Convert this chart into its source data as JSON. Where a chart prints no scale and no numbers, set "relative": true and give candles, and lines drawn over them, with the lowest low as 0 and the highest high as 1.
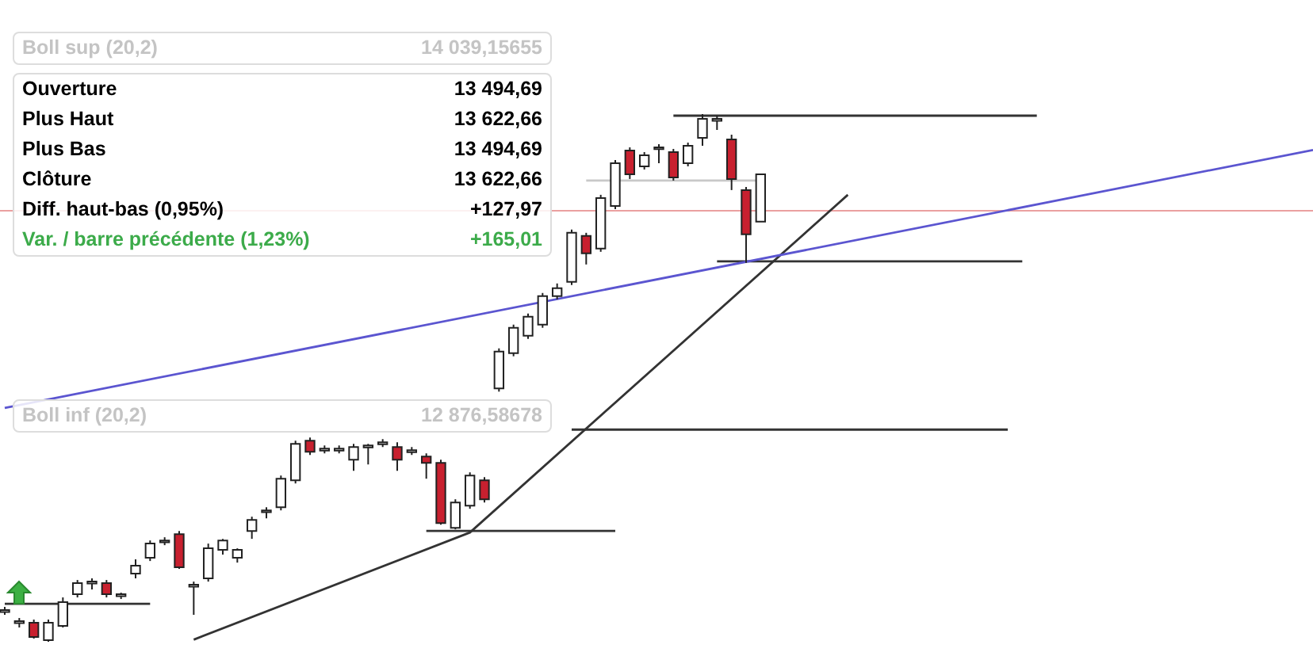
{
  "chart_data": {
    "type": "candlestick",
    "relative": true,
    "legend": false,
    "annotations": [
      "Boll sup (20,2)",
      "14 039,15655",
      "Ouverture",
      "13 494,69",
      "Plus Haut",
      "13 622,66",
      "Plus Bas",
      "13 494,69",
      "Clôture",
      "13 622,66",
      "Diff. haut-bas (0,95%)",
      "+127,97",
      "Var. / barre précédente (1,23%)",
      "+165,01",
      "Boll inf (20,2)",
      "12 876,58678"
    ],
    "categories": [
      null,
      null,
      null,
      null,
      null,
      null,
      null,
      null,
      null,
      null,
      null,
      null,
      null,
      null,
      null,
      null,
      null,
      null,
      null,
      null,
      null,
      null,
      null,
      null,
      null,
      null,
      null,
      null,
      null,
      null,
      null,
      null,
      null,
      null,
      null,
      null,
      null,
      null,
      null,
      null,
      null,
      null,
      null,
      null,
      null,
      null,
      null,
      null,
      null,
      null,
      null,
      null,
      null,
      null,
      null,
      null,
      null,
      null,
      null,
      null,
      null,
      null,
      null,
      null,
      null,
      null,
      null,
      null,
      null,
      null,
      null,
      null,
      null,
      null,
      null,
      null,
      null,
      null,
      null,
      null,
      null,
      null,
      null,
      null,
      null,
      null,
      null,
      null,
      null,
      null,
      null
    ],
    "ohlc": [
      [
        0.06,
        0.066,
        0.051,
        0.06
      ],
      [
        0.039,
        0.045,
        0.027,
        0.039
      ],
      [
        0.036,
        0.042,
        0.006,
        0.009
      ],
      [
        0.003,
        0.042,
        0,
        0.036
      ],
      [
        0.03,
        0.084,
        0.027,
        0.075
      ],
      [
        0.09,
        0.117,
        0.084,
        0.111
      ],
      [
        0.114,
        0.12,
        0.099,
        0.114
      ],
      [
        0.111,
        0.117,
        0.084,
        0.09
      ],
      [
        0.09,
        0.093,
        0.081,
        0.09
      ],
      [
        0.129,
        0.156,
        0.12,
        0.144
      ],
      [
        0.159,
        0.192,
        0.153,
        0.186
      ],
      [
        0.192,
        0.198,
        0.183,
        0.192
      ],
      [
        0.204,
        0.21,
        0.138,
        0.141
      ],
      [
        0.108,
        0.114,
        0.051,
        0.108
      ],
      [
        0.12,
        0.186,
        0.114,
        0.177
      ],
      [
        0.174,
        0.195,
        0.165,
        0.192
      ],
      [
        0.159,
        0.177,
        0.15,
        0.174
      ],
      [
        0.21,
        0.237,
        0.195,
        0.231
      ],
      [
        0.249,
        0.255,
        0.234,
        0.249
      ],
      [
        0.255,
        0.315,
        0.249,
        0.309
      ],
      [
        0.306,
        0.381,
        0.3,
        0.375
      ],
      [
        0.381,
        0.387,
        0.354,
        0.36
      ],
      [
        0.366,
        0.372,
        0.357,
        0.366
      ],
      [
        0.366,
        0.372,
        0.357,
        0.366
      ],
      [
        0.345,
        0.375,
        0.324,
        0.369
      ],
      [
        0.372,
        0.375,
        0.336,
        0.372
      ],
      [
        0.378,
        0.384,
        0.369,
        0.378
      ],
      [
        0.369,
        0.378,
        0.324,
        0.345
      ],
      [
        0.363,
        0.369,
        0.354,
        0.363
      ],
      [
        0.351,
        0.357,
        0.309,
        0.339
      ],
      [
        0.339,
        0.345,
        0.222,
        0.225
      ],
      [
        0.216,
        0.27,
        0.213,
        0.264
      ],
      [
        0.258,
        0.321,
        0.252,
        0.315
      ],
      [
        0.306,
        0.312,
        0.264,
        0.27
      ],
      [
        0.48,
        0.556,
        0.474,
        0.55
      ],
      [
        0.547,
        0.601,
        0.541,
        0.595
      ],
      [
        0.58,
        0.622,
        0.574,
        0.616
      ],
      [
        0.601,
        0.661,
        0.595,
        0.655
      ],
      [
        0.655,
        0.679,
        0.649,
        0.67
      ],
      [
        0.682,
        0.781,
        0.676,
        0.775
      ],
      [
        0.769,
        0.775,
        0.715,
        0.736
      ],
      [
        0.745,
        0.847,
        0.739,
        0.841
      ],
      [
        0.826,
        0.913,
        0.82,
        0.907
      ],
      [
        0.931,
        0.937,
        0.877,
        0.886
      ],
      [
        0.901,
        0.928,
        0.895,
        0.922
      ],
      [
        0.937,
        0.943,
        0.907,
        0.937
      ],
      [
        0.928,
        0.934,
        0.874,
        0.88
      ],
      [
        0.907,
        0.946,
        0.901,
        0.94
      ],
      [
        0.955,
        1,
        0.94,
        0.991
      ],
      [
        0.991,
        0.997,
        0.97,
        0.991
      ],
      [
        0.952,
        0.961,
        0.856,
        0.877
      ],
      [
        0.856,
        0.862,
        0.718,
        0.772
      ],
      [
        0.796,
        0.886,
        0.796,
        0.886
      ],
      null,
      null,
      null,
      null,
      null,
      null,
      null,
      null,
      null,
      null,
      null,
      null,
      null,
      null,
      null,
      null,
      null,
      null,
      null,
      null,
      null,
      null,
      null,
      null,
      null,
      null,
      null,
      null,
      null,
      null,
      null,
      null,
      null,
      null,
      null,
      null,
      null,
      null
    ],
    "ref_lines": [
      {
        "axis": "y",
        "value": 0.817,
        "color": "#eaa0a0"
      }
    ],
    "series": [
      {
        "type": "line",
        "color": "#5b55d0",
        "values": [
          0.443,
          null,
          null,
          null,
          null,
          null,
          null,
          null,
          null,
          null,
          null,
          null,
          null,
          null,
          null,
          null,
          null,
          null,
          null,
          null,
          null,
          null,
          null,
          null,
          null,
          null,
          null,
          null,
          null,
          null,
          null,
          null,
          null,
          null,
          null,
          null,
          null,
          null,
          null,
          null,
          null,
          null,
          null,
          null,
          null,
          null,
          null,
          null,
          null,
          null,
          null,
          null,
          null,
          null,
          null,
          null,
          null,
          null,
          null,
          null,
          null,
          null,
          null,
          null,
          null,
          null,
          null,
          null,
          null,
          null,
          null,
          null,
          null,
          null,
          null,
          null,
          null,
          null,
          null,
          null,
          null,
          null,
          null,
          null,
          null,
          null,
          null,
          null,
          null,
          null,
          0.932
        ]
      },
      {
        "type": "line",
        "color": "#333333",
        "values": [
          null,
          null,
          null,
          null,
          null,
          null,
          null,
          null,
          null,
          null,
          null,
          null,
          null,
          0.004,
          null,
          null,
          null,
          null,
          null,
          null,
          null,
          null,
          null,
          null,
          null,
          null,
          null,
          null,
          null,
          null,
          null,
          null,
          0.207,
          null,
          null,
          null,
          null,
          null,
          null,
          null,
          null,
          null,
          null,
          null,
          null,
          null,
          null,
          null,
          null,
          null,
          null,
          null,
          null,
          null,
          null,
          null,
          null,
          null,
          0.847,
          null,
          null,
          null,
          null,
          null,
          null,
          null,
          null,
          null,
          null,
          null,
          null,
          null,
          null,
          null,
          null,
          null,
          null,
          null,
          null,
          null,
          null,
          null,
          null,
          null,
          null,
          null,
          null,
          null,
          null,
          null,
          null
        ]
      },
      {
        "type": "line",
        "color": "#333333",
        "values": [
          0.072,
          null,
          null,
          null,
          null,
          null,
          null,
          null,
          null,
          null,
          0.072,
          null,
          null,
          null,
          null,
          null,
          null,
          null,
          null,
          null,
          null,
          null,
          null,
          null,
          null,
          null,
          null,
          null,
          null,
          null,
          null,
          null,
          null,
          null,
          null,
          null,
          null,
          null,
          null,
          null,
          null,
          null,
          null,
          null,
          null,
          null,
          null,
          null,
          null,
          null,
          null,
          null,
          null,
          null,
          null,
          null,
          null,
          null,
          null,
          null,
          null,
          null,
          null,
          null,
          null,
          null,
          null,
          null,
          null,
          null,
          null,
          null,
          null,
          null,
          null,
          null,
          null,
          null,
          null,
          null,
          null,
          null,
          null,
          null,
          null,
          null,
          null,
          null,
          null,
          null,
          null
        ]
      },
      {
        "type": "line",
        "color": "#333333",
        "values": [
          null,
          null,
          null,
          null,
          null,
          null,
          null,
          null,
          null,
          null,
          null,
          null,
          null,
          null,
          null,
          null,
          null,
          null,
          null,
          null,
          null,
          null,
          null,
          null,
          null,
          null,
          null,
          null,
          null,
          0.21,
          null,
          null,
          null,
          null,
          null,
          null,
          null,
          null,
          null,
          null,
          null,
          null,
          0.21,
          null,
          null,
          null,
          null,
          null,
          null,
          null,
          null,
          null,
          null,
          null,
          null,
          null,
          null,
          null,
          null,
          null,
          null,
          null,
          null,
          null,
          null,
          null,
          null,
          null,
          null,
          null,
          null,
          null,
          null,
          null,
          null,
          null,
          null,
          null,
          null,
          null,
          null,
          null,
          null,
          null,
          null,
          null,
          null,
          null,
          null,
          null,
          null
        ]
      },
      {
        "type": "line",
        "color": "#333333",
        "values": [
          null,
          null,
          null,
          null,
          null,
          null,
          null,
          null,
          null,
          null,
          null,
          null,
          null,
          null,
          null,
          null,
          null,
          null,
          null,
          null,
          null,
          null,
          null,
          null,
          null,
          null,
          null,
          null,
          null,
          null,
          null,
          null,
          null,
          null,
          null,
          null,
          null,
          null,
          null,
          0.402,
          null,
          null,
          null,
          null,
          null,
          null,
          null,
          null,
          null,
          null,
          null,
          null,
          null,
          null,
          null,
          null,
          null,
          null,
          null,
          null,
          null,
          null,
          null,
          null,
          null,
          null,
          null,
          null,
          null,
          0.402,
          null,
          null,
          null,
          null,
          null,
          null,
          null,
          null,
          null,
          null,
          null,
          null,
          null,
          null,
          null,
          null,
          null,
          null,
          null,
          null,
          null
        ]
      },
      {
        "type": "line",
        "color": "#333333",
        "values": [
          null,
          null,
          null,
          null,
          null,
          null,
          null,
          null,
          null,
          null,
          null,
          null,
          null,
          null,
          null,
          null,
          null,
          null,
          null,
          null,
          null,
          null,
          null,
          null,
          null,
          null,
          null,
          null,
          null,
          null,
          null,
          null,
          null,
          null,
          null,
          null,
          null,
          null,
          null,
          null,
          null,
          null,
          null,
          null,
          null,
          null,
          null,
          null,
          null,
          0.721,
          null,
          null,
          null,
          null,
          null,
          null,
          null,
          null,
          null,
          null,
          null,
          null,
          null,
          null,
          null,
          null,
          null,
          null,
          null,
          null,
          0.721,
          null,
          null,
          null,
          null,
          null,
          null,
          null,
          null,
          null,
          null,
          null,
          null,
          null,
          null,
          null,
          null,
          null,
          null,
          null,
          null
        ]
      },
      {
        "type": "line",
        "color": "#333333",
        "values": [
          null,
          null,
          null,
          null,
          null,
          null,
          null,
          null,
          null,
          null,
          null,
          null,
          null,
          null,
          null,
          null,
          null,
          null,
          null,
          null,
          null,
          null,
          null,
          null,
          null,
          null,
          null,
          null,
          null,
          null,
          null,
          null,
          null,
          null,
          null,
          null,
          null,
          null,
          null,
          null,
          null,
          null,
          null,
          null,
          null,
          null,
          0.997,
          null,
          null,
          null,
          null,
          null,
          null,
          null,
          null,
          null,
          null,
          null,
          null,
          null,
          null,
          null,
          null,
          null,
          null,
          null,
          null,
          null,
          null,
          null,
          null,
          0.997,
          null,
          null,
          null,
          null,
          null,
          null,
          null,
          null,
          null,
          null,
          null,
          null,
          null,
          null,
          null,
          null,
          null,
          null,
          null
        ]
      },
      {
        "type": "line",
        "color": "#c8c8c8",
        "values": [
          null,
          null,
          null,
          null,
          null,
          null,
          null,
          null,
          null,
          null,
          null,
          null,
          null,
          null,
          null,
          null,
          null,
          null,
          null,
          null,
          null,
          null,
          null,
          null,
          null,
          null,
          null,
          null,
          null,
          null,
          null,
          null,
          null,
          null,
          null,
          null,
          null,
          null,
          null,
          null,
          0.874,
          null,
          null,
          null,
          null,
          null,
          null,
          null,
          null,
          null,
          null,
          null,
          0.874,
          null,
          null,
          null,
          null,
          null,
          null,
          null,
          null,
          null,
          null,
          null,
          null,
          null,
          null,
          null,
          null,
          null,
          null,
          null,
          null,
          null,
          null,
          null,
          null,
          null,
          null,
          null,
          null,
          null,
          null,
          null,
          null,
          null,
          null,
          null,
          null,
          null,
          null
        ]
      }
    ]
  }
}
